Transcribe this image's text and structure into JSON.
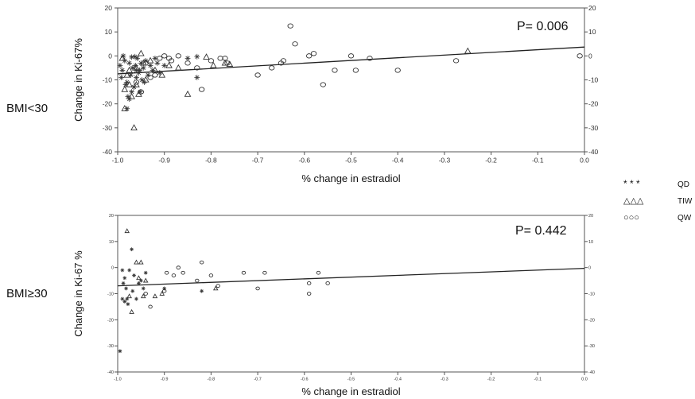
{
  "figure": {
    "panel_labels": [
      "BMI<30",
      "BMI≥30"
    ],
    "legend": [
      {
        "symbol": "star",
        "glyphs": "* * *",
        "label": "QD"
      },
      {
        "symbol": "triangle",
        "glyphs": "△△△",
        "label": "TIW"
      },
      {
        "symbol": "circle",
        "glyphs": "○○○",
        "label": "QW"
      }
    ],
    "colors": {
      "axis": "#555555",
      "line": "#222222",
      "marker": "#333333",
      "qw_label": "#888888"
    }
  },
  "chart_data": [
    {
      "type": "scatter",
      "panel": "BMI<30",
      "xlabel": "% change in estradiol",
      "ylabel": "Change in Ki-67%",
      "xlim": [
        -1.0,
        0.0
      ],
      "ylim": [
        -40,
        20
      ],
      "xticks": [
        -1.0,
        -0.9,
        -0.8,
        -0.7,
        -0.6,
        -0.5,
        -0.4,
        -0.3,
        -0.2,
        -0.1,
        0.0
      ],
      "yticks": [
        20,
        10,
        0,
        -10,
        -20,
        -30,
        -40
      ],
      "annotation": "P= 0.006",
      "regression": {
        "x": [
          -1.0,
          0.0
        ],
        "y": [
          -7.5,
          3.7
        ]
      },
      "series": [
        {
          "name": "QD",
          "marker": "star",
          "points": [
            [
              -0.99,
              -6
            ],
            [
              -0.985,
              -2
            ],
            [
              -0.98,
              -11
            ],
            [
              -0.978,
              -17
            ],
            [
              -0.975,
              -3
            ],
            [
              -0.972,
              -8
            ],
            [
              -0.97,
              -0.5
            ],
            [
              -0.968,
              -5
            ],
            [
              -0.965,
              -13
            ],
            [
              -0.962,
              -4
            ],
            [
              -0.96,
              -9
            ],
            [
              -0.958,
              -1
            ],
            [
              -0.955,
              -7
            ],
            [
              -0.952,
              -15
            ],
            [
              -0.95,
              -3
            ],
            [
              -0.948,
              -10
            ],
            [
              -0.945,
              -5
            ],
            [
              -0.94,
              -2
            ],
            [
              -0.935,
              -8
            ],
            [
              -0.93,
              -4
            ],
            [
              -0.925,
              -6
            ],
            [
              -0.92,
              -1
            ],
            [
              -0.915,
              -3
            ],
            [
              -0.91,
              -7
            ],
            [
              -0.98,
              -22
            ],
            [
              -0.975,
              -18
            ],
            [
              -0.995,
              -4
            ],
            [
              -0.992,
              -9
            ],
            [
              -0.988,
              0
            ],
            [
              -0.983,
              -12
            ],
            [
              -0.963,
              -0.3
            ],
            [
              -0.953,
              -6
            ],
            [
              -0.943,
              -11
            ],
            [
              -0.96,
              -6
            ],
            [
              -0.97,
              -15
            ],
            [
              -0.85,
              -1
            ],
            [
              -0.83,
              -0.3
            ],
            [
              -0.83,
              -9
            ],
            [
              -0.9,
              -4
            ]
          ]
        },
        {
          "name": "TIW",
          "marker": "triangle",
          "points": [
            [
              -0.99,
              -1
            ],
            [
              -0.985,
              -22
            ],
            [
              -0.98,
              -8
            ],
            [
              -0.975,
              -12
            ],
            [
              -0.97,
              -17
            ],
            [
              -0.965,
              -30
            ],
            [
              -0.96,
              -5
            ],
            [
              -0.955,
              -16
            ],
            [
              -0.95,
              1
            ],
            [
              -0.945,
              -3
            ],
            [
              -0.94,
              -10
            ],
            [
              -0.93,
              -2
            ],
            [
              -0.92,
              -6
            ],
            [
              -0.905,
              -8
            ],
            [
              -0.89,
              -4
            ],
            [
              -0.87,
              -5
            ],
            [
              -0.85,
              -16
            ],
            [
              -0.81,
              -0.5
            ],
            [
              -0.795,
              -4
            ],
            [
              -0.77,
              -3
            ],
            [
              -0.76,
              -3.5
            ],
            [
              -0.25,
              2
            ],
            [
              -0.975,
              -6
            ],
            [
              -0.96,
              -12
            ],
            [
              -0.985,
              -14
            ]
          ]
        },
        {
          "name": "QW",
          "marker": "circle",
          "points": [
            [
              -0.93,
              -9
            ],
            [
              -0.92,
              -8
            ],
            [
              -0.91,
              -1
            ],
            [
              -0.9,
              0
            ],
            [
              -0.89,
              -1
            ],
            [
              -0.885,
              -2
            ],
            [
              -0.87,
              0
            ],
            [
              -0.85,
              -3
            ],
            [
              -0.83,
              -5
            ],
            [
              -0.82,
              -14
            ],
            [
              -0.8,
              -2
            ],
            [
              -0.78,
              -1
            ],
            [
              -0.77,
              -1
            ],
            [
              -0.765,
              -3
            ],
            [
              -0.7,
              -8
            ],
            [
              -0.67,
              -5
            ],
            [
              -0.65,
              -3
            ],
            [
              -0.645,
              -2
            ],
            [
              -0.63,
              12.5
            ],
            [
              -0.62,
              5
            ],
            [
              -0.59,
              0
            ],
            [
              -0.58,
              1
            ],
            [
              -0.56,
              -12
            ],
            [
              -0.535,
              -6
            ],
            [
              -0.5,
              0
            ],
            [
              -0.49,
              -6
            ],
            [
              -0.46,
              -1
            ],
            [
              -0.4,
              -6
            ],
            [
              -0.275,
              -2
            ],
            [
              -0.01,
              0
            ],
            [
              -0.94,
              -3
            ],
            [
              -0.95,
              -15
            ],
            [
              -0.96,
              -11
            ]
          ]
        }
      ]
    },
    {
      "type": "scatter",
      "panel": "BMI≥30",
      "xlabel": "% change in estradiol",
      "ylabel": "Change in Ki-67 %",
      "xlim": [
        -1.0,
        0.0
      ],
      "ylim": [
        -40,
        20
      ],
      "xticks": [
        -1.0,
        -0.9,
        -0.8,
        -0.7,
        -0.6,
        -0.5,
        -0.4,
        -0.3,
        -0.2,
        -0.1,
        0.0
      ],
      "yticks": [
        20,
        10,
        0,
        -10,
        -20,
        -30,
        -40
      ],
      "annotation": "P= 0.442",
      "regression": {
        "x": [
          -1.0,
          0.0
        ],
        "y": [
          -7.0,
          -0.3
        ]
      },
      "series": [
        {
          "name": "QD",
          "marker": "star",
          "points": [
            [
              -0.995,
              -32
            ],
            [
              -0.99,
              -12
            ],
            [
              -0.988,
              -6
            ],
            [
              -0.985,
              -13
            ],
            [
              -0.982,
              -8
            ],
            [
              -0.98,
              -12
            ],
            [
              -0.978,
              -14
            ],
            [
              -0.975,
              -1
            ],
            [
              -0.97,
              7
            ],
            [
              -0.968,
              -9
            ],
            [
              -0.965,
              -3
            ],
            [
              -0.96,
              -12
            ],
            [
              -0.955,
              -6
            ],
            [
              -0.95,
              -5
            ],
            [
              -0.945,
              -8
            ],
            [
              -0.94,
              -2
            ],
            [
              -0.99,
              -1
            ],
            [
              -0.985,
              -4
            ],
            [
              -0.82,
              -9
            ],
            [
              -0.9,
              -8
            ]
          ]
        },
        {
          "name": "TIW",
          "marker": "triangle",
          "points": [
            [
              -0.98,
              14
            ],
            [
              -0.97,
              -17
            ],
            [
              -0.96,
              2
            ],
            [
              -0.955,
              -4
            ],
            [
              -0.95,
              2
            ],
            [
              -0.945,
              -11
            ],
            [
              -0.94,
              -5
            ],
            [
              -0.92,
              -11
            ],
            [
              -0.905,
              -10
            ],
            [
              -0.79,
              -8
            ],
            [
              -0.975,
              -11
            ]
          ]
        },
        {
          "name": "QW",
          "marker": "circle",
          "points": [
            [
              -0.94,
              -10
            ],
            [
              -0.93,
              -15
            ],
            [
              -0.9,
              -9
            ],
            [
              -0.895,
              -2
            ],
            [
              -0.88,
              -3
            ],
            [
              -0.87,
              0
            ],
            [
              -0.86,
              -2
            ],
            [
              -0.83,
              -5
            ],
            [
              -0.82,
              2
            ],
            [
              -0.8,
              -3
            ],
            [
              -0.785,
              -7
            ],
            [
              -0.73,
              -2
            ],
            [
              -0.7,
              -8
            ],
            [
              -0.685,
              -2
            ],
            [
              -0.59,
              -6
            ],
            [
              -0.59,
              -10
            ],
            [
              -0.57,
              -2
            ],
            [
              -0.55,
              -6
            ]
          ]
        }
      ]
    }
  ]
}
